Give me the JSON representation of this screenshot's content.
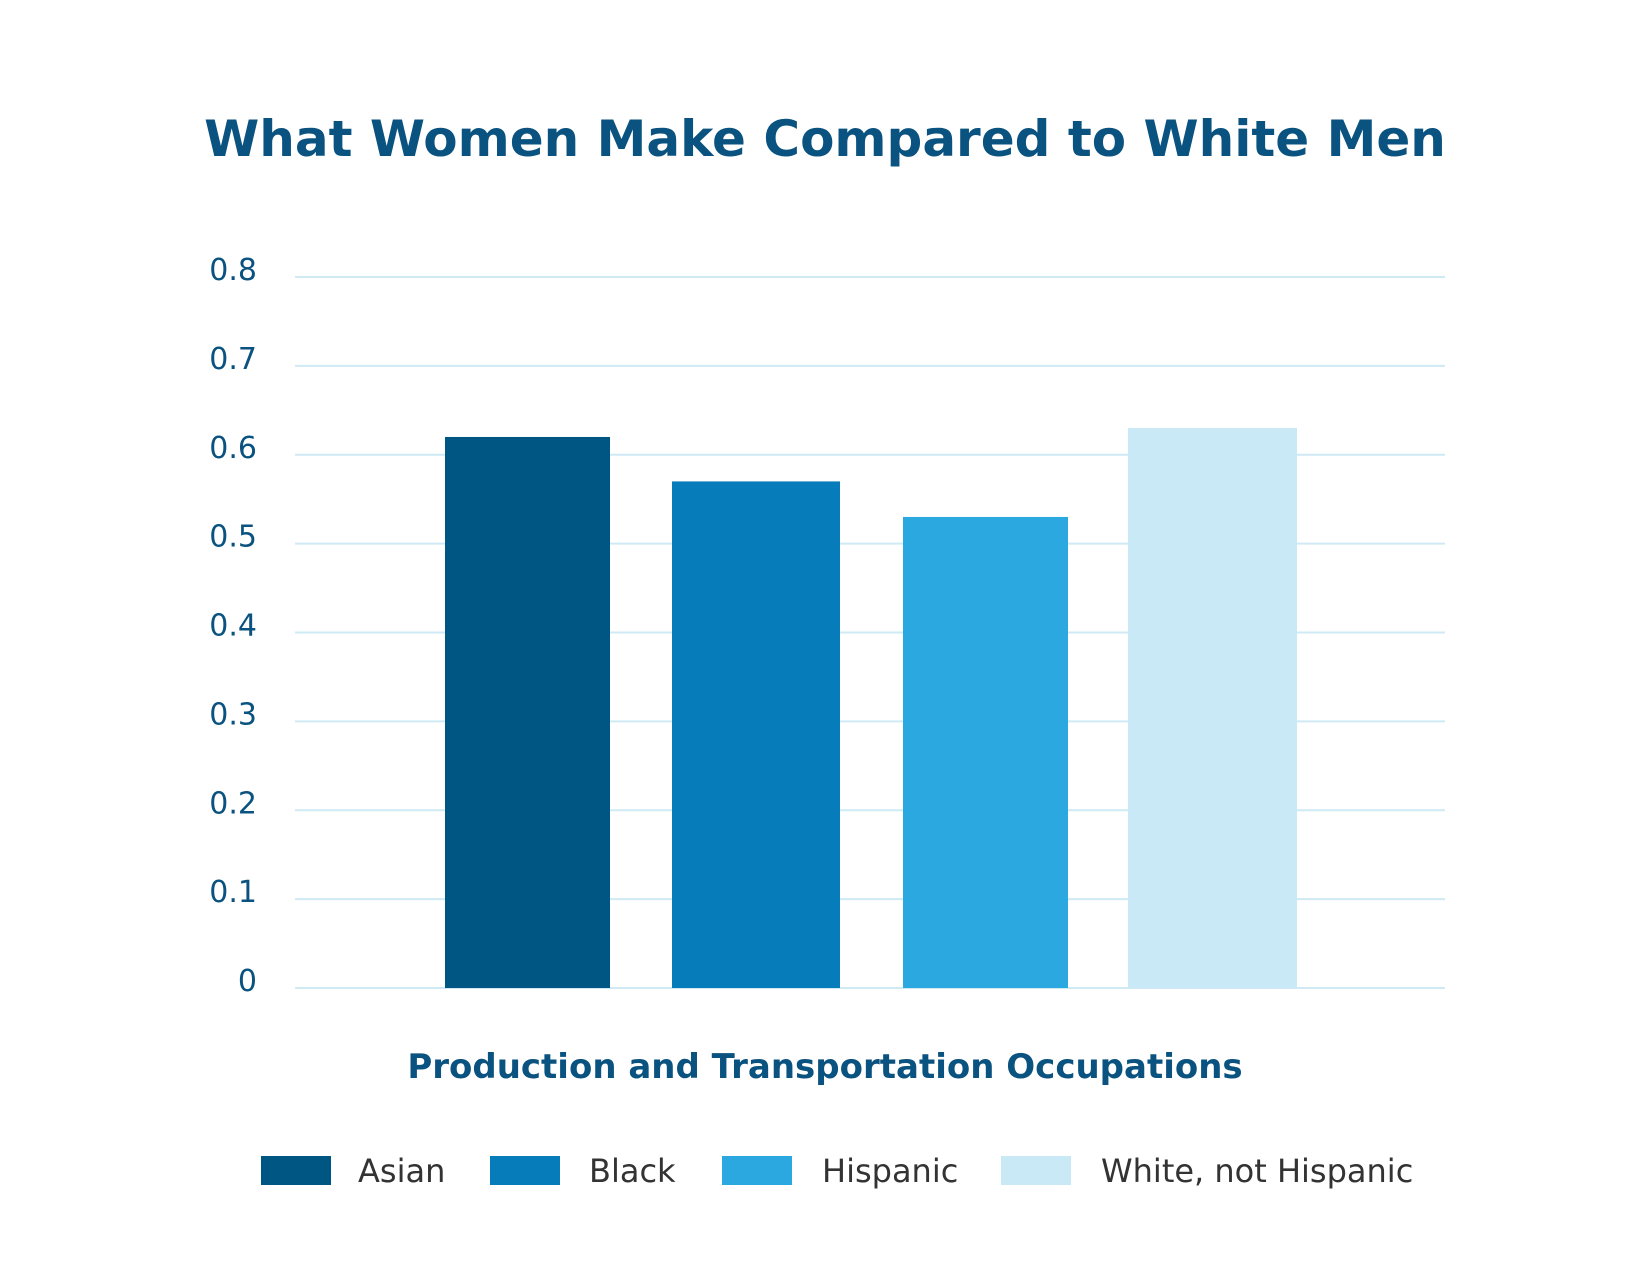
{
  "chart_data": {
    "type": "bar",
    "title": "What Women Make Compared to White Men",
    "xlabel": "Production and Transportation Occupations",
    "ylabel": "",
    "ylim": [
      0,
      0.8
    ],
    "yticks": [
      "0",
      "0.1",
      "0.2",
      "0.3",
      "0.4",
      "0.5",
      "0.6",
      "0.7",
      "0.8"
    ],
    "grid": true,
    "legend_position": "bottom",
    "categories": [
      "Production and Transportation Occupations"
    ],
    "series": [
      {
        "name": "Asian",
        "values": [
          0.62
        ],
        "color": "#005683"
      },
      {
        "name": "Black",
        "values": [
          0.57
        ],
        "color": "#067DBA"
      },
      {
        "name": "Hispanic",
        "values": [
          0.53
        ],
        "color": "#2BA8E0"
      },
      {
        "name": "White, not Hispanic",
        "values": [
          0.63
        ],
        "color": "#C8E9F5"
      }
    ]
  },
  "colors": {
    "title": "#0A527F",
    "tick": "#0A527F",
    "gridline": "#CFEAF5"
  }
}
